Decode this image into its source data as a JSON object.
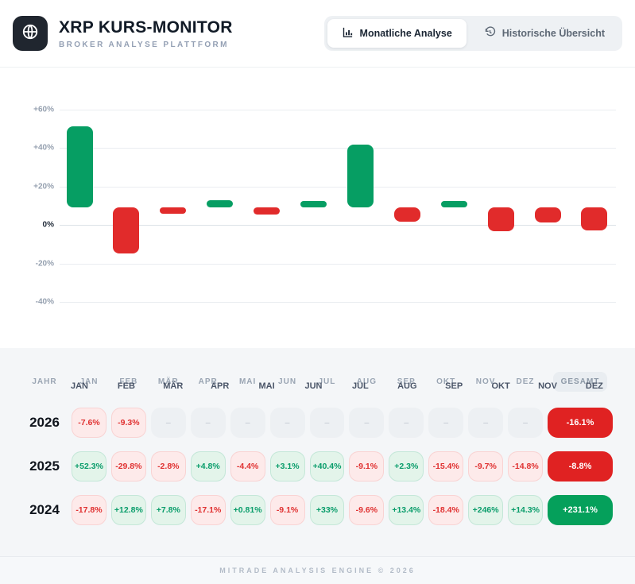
{
  "header": {
    "title": "XRP KURS-MONITOR",
    "subtitle": "BROKER ANALYSE PLATTFORM",
    "logo_icon": "globe-icon",
    "tabs": [
      {
        "label": "Monatliche Analyse",
        "icon": "bar-chart-icon",
        "active": true
      },
      {
        "label": "Historische Übersicht",
        "icon": "history-icon",
        "active": false
      }
    ]
  },
  "colors": {
    "positive": "#069e63",
    "negative": "#e12b2b",
    "total_positive_bg": "#05a05b",
    "total_negative_bg": "#e02222",
    "cell_positive_bg": "#e3f4ea",
    "cell_negative_bg": "#fdeaea",
    "logo_bg": "#20262f"
  },
  "chart_data": {
    "type": "bar",
    "title": "",
    "xlabel": "",
    "ylabel": "",
    "unit": "%",
    "categories": [
      "JAN",
      "FEB",
      "MÄR",
      "APR",
      "MAI",
      "JUN",
      "JUL",
      "AUG",
      "SEP",
      "OKT",
      "NOV",
      "DEZ"
    ],
    "values": [
      52.3,
      -29.8,
      -2.8,
      4.8,
      -4.4,
      3.1,
      40.4,
      -9.1,
      2.3,
      -15.4,
      -9.7,
      -14.8
    ],
    "y_ticks": [
      "+60%",
      "+40%",
      "+20%",
      "0%",
      "-20%",
      "-40%"
    ],
    "y_tick_values": [
      60,
      40,
      20,
      0,
      -20,
      -40
    ],
    "ylim": [
      -50,
      70
    ],
    "grid": true,
    "legend": false,
    "positive_color": "#069e63",
    "negative_color": "#e12b2b"
  },
  "table": {
    "columns": [
      "JAHR",
      "JAN",
      "FEB",
      "MÄR",
      "APR",
      "MAI",
      "JUN",
      "JUL",
      "AUG",
      "SEP",
      "OKT",
      "NOV",
      "DEZ",
      "GESAMT"
    ],
    "rows": [
      {
        "year": "2026",
        "cells": [
          "-7.6%",
          "-9.3%",
          "–",
          "–",
          "–",
          "–",
          "–",
          "–",
          "–",
          "–",
          "–",
          "–"
        ],
        "total": "-16.1%",
        "total_positive": false
      },
      {
        "year": "2025",
        "cells": [
          "+52.3%",
          "-29.8%",
          "-2.8%",
          "+4.8%",
          "-4.4%",
          "+3.1%",
          "+40.4%",
          "-9.1%",
          "+2.3%",
          "-15.4%",
          "-9.7%",
          "-14.8%"
        ],
        "total": "-8.8%",
        "total_positive": false
      },
      {
        "year": "2024",
        "cells": [
          "-17.8%",
          "+12.8%",
          "+7.8%",
          "-17.1%",
          "+0.81%",
          "-9.1%",
          "+33%",
          "-9.6%",
          "+13.4%",
          "-18.4%",
          "+246%",
          "+14.3%"
        ],
        "total": "+231.1%",
        "total_positive": true
      }
    ]
  },
  "footer": {
    "text": "MITRADE ANALYSIS ENGINE © 2026"
  }
}
